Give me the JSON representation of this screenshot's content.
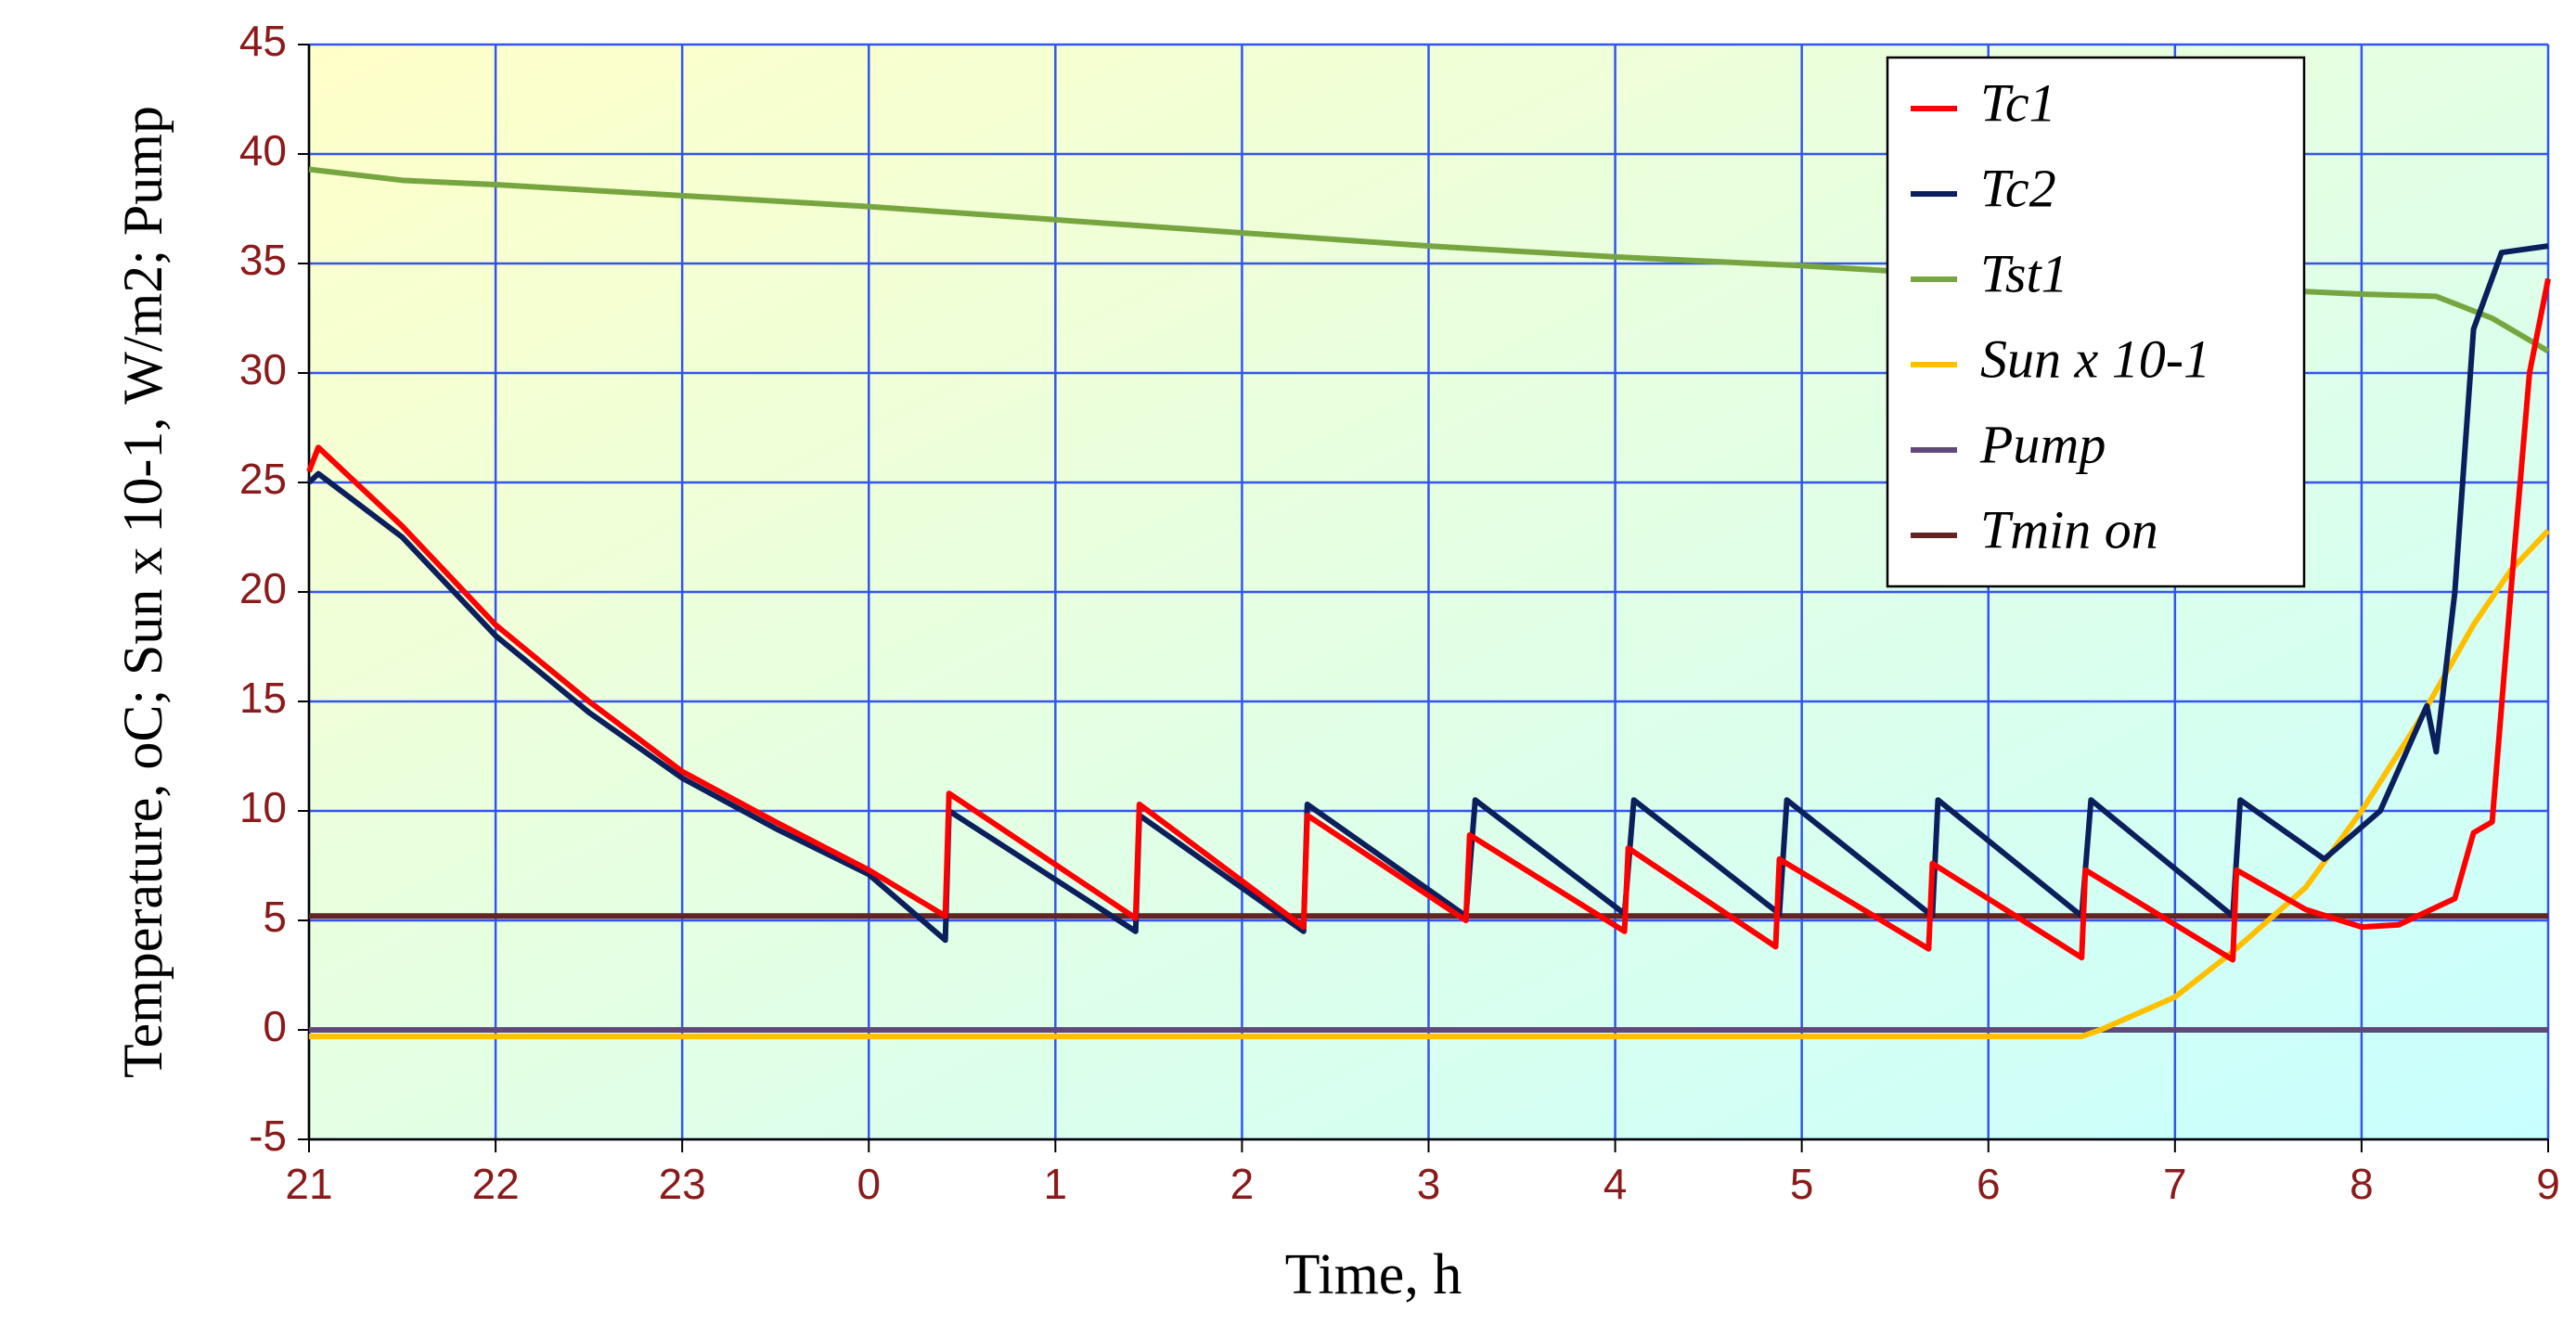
{
  "chart_data": {
    "type": "line",
    "xlabel": "Time, h",
    "ylabel": "Temperature, oC;  Sun x 10-1, W/m2;  Pump",
    "xlim": [
      0,
      12
    ],
    "xticks": [
      {
        "value": 0,
        "label": "21"
      },
      {
        "value": 1,
        "label": "22"
      },
      {
        "value": 2,
        "label": "23"
      },
      {
        "value": 3,
        "label": "0"
      },
      {
        "value": 4,
        "label": "1"
      },
      {
        "value": 5,
        "label": "2"
      },
      {
        "value": 6,
        "label": "3"
      },
      {
        "value": 7,
        "label": "4"
      },
      {
        "value": 8,
        "label": "5"
      },
      {
        "value": 9,
        "label": "6"
      },
      {
        "value": 10,
        "label": "7"
      },
      {
        "value": 11,
        "label": "8"
      },
      {
        "value": 12,
        "label": "9"
      }
    ],
    "ylim": [
      -5,
      45
    ],
    "yticks": [
      -5,
      0,
      5,
      10,
      15,
      20,
      25,
      30,
      35,
      40,
      45
    ],
    "grid": true,
    "legend": "upper right",
    "series": [
      {
        "name": "Tc1",
        "color": "#ff0000",
        "x": [
          0,
          0.05,
          0.5,
          1,
          1.5,
          2,
          2.5,
          3,
          3.41,
          3.43,
          4.43,
          4.45,
          5.33,
          5.35,
          6.2,
          6.22,
          7.05,
          7.07,
          7.86,
          7.88,
          8.68,
          8.7,
          9.5,
          9.52,
          10.31,
          10.33,
          10.7,
          11.0,
          11.2,
          11.5,
          11.6,
          11.7,
          11.8,
          11.9,
          12
        ],
        "values": [
          25.5,
          26.6,
          23,
          18.5,
          15,
          11.8,
          9.5,
          7.3,
          5.2,
          10.8,
          5.1,
          10.3,
          4.7,
          9.8,
          5.0,
          8.9,
          4.5,
          8.3,
          3.8,
          7.8,
          3.7,
          7.6,
          3.3,
          7.3,
          3.2,
          7.3,
          5.5,
          4.7,
          4.8,
          6,
          9,
          9.5,
          20,
          30,
          34.3
        ]
      },
      {
        "name": "Tc2",
        "color": "#0a1f5c",
        "x": [
          0,
          0.05,
          0.5,
          1,
          1.5,
          2,
          2.5,
          3,
          3.41,
          3.43,
          4.43,
          4.45,
          5.33,
          5.35,
          6.2,
          6.25,
          7.05,
          7.1,
          7.88,
          7.92,
          8.7,
          8.73,
          9.5,
          9.55,
          10.31,
          10.35,
          10.8,
          11.1,
          11.35,
          11.4,
          11.5,
          11.6,
          11.75,
          12
        ],
        "values": [
          25,
          25.4,
          22.5,
          18,
          14.5,
          11.5,
          9.2,
          7.1,
          4.1,
          10,
          4.5,
          9.8,
          4.5,
          10.3,
          5.2,
          10.5,
          5.3,
          10.5,
          5.3,
          10.5,
          5.2,
          10.5,
          5.2,
          10.5,
          5.2,
          10.5,
          7.8,
          10,
          14.8,
          12.7,
          20,
          32,
          35.5,
          35.8
        ]
      },
      {
        "name": "Tst1",
        "color": "#77a640",
        "x": [
          0,
          0.5,
          1,
          2,
          3,
          4,
          5,
          6,
          7,
          8,
          9,
          10,
          11,
          11.4,
          11.7,
          12
        ],
        "values": [
          39.3,
          38.8,
          38.6,
          38.1,
          37.6,
          37,
          36.4,
          35.8,
          35.3,
          34.9,
          34.4,
          34,
          33.6,
          33.5,
          32.5,
          31
        ]
      },
      {
        "name": "Sun x 10-1",
        "color": "#ffc000",
        "x": [
          0,
          9.5,
          9.6,
          10,
          10.3,
          10.7,
          11.0,
          11.3,
          11.6,
          11.8,
          12
        ],
        "values": [
          -0.3,
          -0.3,
          0,
          1.5,
          3.5,
          6.5,
          10,
          14,
          18.5,
          21,
          22.8
        ]
      },
      {
        "name": "Pump",
        "color": "#60497a",
        "x": [
          0,
          12
        ],
        "values": [
          0,
          0
        ]
      },
      {
        "name": "Tmin on",
        "color": "#632523",
        "x": [
          0,
          12
        ],
        "values": [
          5.2,
          5.2
        ]
      }
    ]
  }
}
